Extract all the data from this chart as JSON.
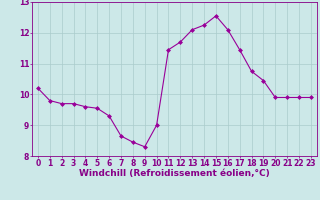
{
  "x": [
    0,
    1,
    2,
    3,
    4,
    5,
    6,
    7,
    8,
    9,
    10,
    11,
    12,
    13,
    14,
    15,
    16,
    17,
    18,
    19,
    20,
    21,
    22,
    23
  ],
  "y": [
    10.2,
    9.8,
    9.7,
    9.7,
    9.6,
    9.55,
    9.3,
    8.65,
    8.45,
    8.3,
    9.0,
    11.45,
    11.7,
    12.1,
    12.25,
    12.55,
    12.1,
    11.45,
    10.75,
    10.45,
    9.9,
    9.9,
    9.9,
    9.9
  ],
  "line_color": "#990099",
  "marker": "D",
  "marker_size": 2,
  "bg_color": "#cce8e8",
  "grid_color": "#aacccc",
  "xlabel": "Windchill (Refroidissement éolien,°C)",
  "xlim": [
    -0.5,
    23.5
  ],
  "ylim": [
    8.0,
    13.0
  ],
  "yticks": [
    8,
    9,
    10,
    11,
    12,
    13
  ],
  "xticks": [
    0,
    1,
    2,
    3,
    4,
    5,
    6,
    7,
    8,
    9,
    10,
    11,
    12,
    13,
    14,
    15,
    16,
    17,
    18,
    19,
    20,
    21,
    22,
    23
  ],
  "tick_color": "#880088",
  "label_color": "#880088",
  "axis_color": "#880088",
  "xlabel_fontsize": 6.5,
  "tick_fontsize": 5.5
}
